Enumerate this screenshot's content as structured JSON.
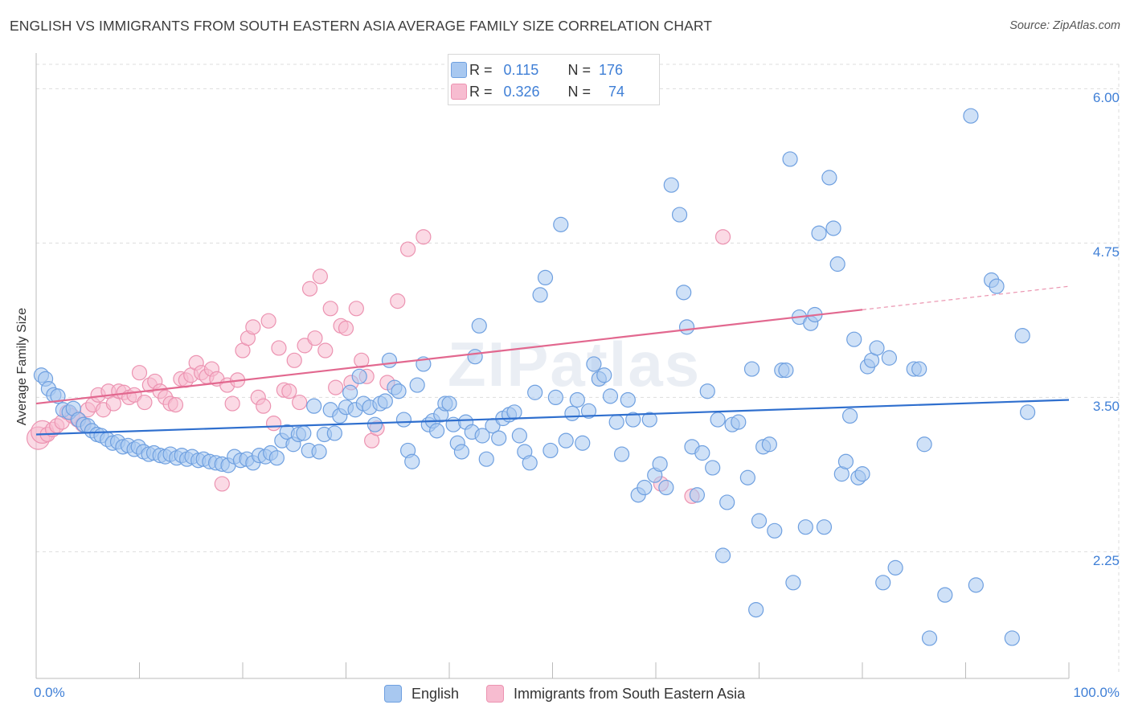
{
  "header": {
    "title": "ENGLISH VS IMMIGRANTS FROM SOUTH EASTERN ASIA AVERAGE FAMILY SIZE CORRELATION CHART",
    "source": "Source: ZipAtlas.com"
  },
  "legend_top": {
    "rows": [
      {
        "r_label": "R =",
        "r_value": "0.115",
        "n_label": "N =",
        "n_value": "176"
      },
      {
        "r_label": "R =",
        "r_value": "0.326",
        "n_label": "N =",
        "n_value": "74"
      }
    ]
  },
  "bottom_legend": [
    "English",
    "Immigrants from South Eastern Asia"
  ],
  "watermark": "ZIPatlas",
  "colors": {
    "english_fill": "#a8c8f0",
    "english_stroke": "#6fa0e0",
    "english_line": "#2f6fce",
    "immigrant_fill": "#f7bcd0",
    "immigrant_stroke": "#ec93b1",
    "immigrant_line": "#e2688f",
    "axis_text": "#3f7fd6",
    "grid": "#dddddd"
  },
  "chart_data": {
    "type": "scatter",
    "title": "ENGLISH VS IMMIGRANTS FROM SOUTH EASTERN ASIA AVERAGE FAMILY SIZE CORRELATION CHART",
    "xlabel": "",
    "ylabel": "Average Family Size",
    "xlim": [
      0,
      100
    ],
    "ylim": [
      1.25,
      6.25
    ],
    "x_tick_labels": [
      "0.0%",
      "100.0%"
    ],
    "y_ticks": [
      2.25,
      3.5,
      4.75,
      6.0
    ],
    "y_tick_labels": [
      "2.25",
      "3.50",
      "4.75",
      "6.00"
    ],
    "grid": true,
    "legend_position": "top-center and bottom",
    "series": [
      {
        "name": "English",
        "R": 0.115,
        "N": 176,
        "trend": {
          "x": [
            0,
            100
          ],
          "y": [
            3.2,
            3.48
          ]
        },
        "points": [
          [
            0.5,
            3.68
          ],
          [
            0.9,
            3.65
          ],
          [
            1.2,
            3.57
          ],
          [
            1.7,
            3.52
          ],
          [
            2.1,
            3.51
          ],
          [
            2.6,
            3.4
          ],
          [
            3.2,
            3.38
          ],
          [
            3.6,
            3.41
          ],
          [
            4.1,
            3.32
          ],
          [
            4.6,
            3.28
          ],
          [
            5.0,
            3.27
          ],
          [
            5.4,
            3.23
          ],
          [
            5.9,
            3.2
          ],
          [
            6.3,
            3.19
          ],
          [
            6.9,
            3.16
          ],
          [
            7.4,
            3.13
          ],
          [
            7.9,
            3.14
          ],
          [
            8.4,
            3.1
          ],
          [
            8.9,
            3.11
          ],
          [
            9.5,
            3.08
          ],
          [
            9.9,
            3.1
          ],
          [
            10.4,
            3.06
          ],
          [
            10.9,
            3.04
          ],
          [
            11.4,
            3.05
          ],
          [
            12.0,
            3.03
          ],
          [
            12.5,
            3.02
          ],
          [
            13.0,
            3.04
          ],
          [
            13.6,
            3.01
          ],
          [
            14.1,
            3.03
          ],
          [
            14.6,
            3.0
          ],
          [
            15.1,
            3.02
          ],
          [
            15.7,
            2.99
          ],
          [
            16.2,
            3.0
          ],
          [
            16.8,
            2.98
          ],
          [
            17.4,
            2.97
          ],
          [
            18.0,
            2.96
          ],
          [
            18.6,
            2.95
          ],
          [
            19.2,
            3.02
          ],
          [
            19.8,
            2.99
          ],
          [
            20.4,
            3.0
          ],
          [
            21.0,
            2.97
          ],
          [
            21.6,
            3.03
          ],
          [
            22.2,
            3.02
          ],
          [
            22.7,
            3.05
          ],
          [
            23.3,
            3.01
          ],
          [
            23.8,
            3.15
          ],
          [
            24.3,
            3.22
          ],
          [
            24.9,
            3.12
          ],
          [
            25.4,
            3.2
          ],
          [
            25.9,
            3.21
          ],
          [
            26.4,
            3.07
          ],
          [
            26.9,
            3.43
          ],
          [
            27.4,
            3.06
          ],
          [
            27.9,
            3.2
          ],
          [
            28.5,
            3.4
          ],
          [
            28.9,
            3.21
          ],
          [
            29.4,
            3.35
          ],
          [
            30.0,
            3.42
          ],
          [
            30.4,
            3.54
          ],
          [
            30.9,
            3.4
          ],
          [
            31.3,
            3.67
          ],
          [
            31.7,
            3.45
          ],
          [
            32.3,
            3.42
          ],
          [
            32.8,
            3.28
          ],
          [
            33.3,
            3.45
          ],
          [
            33.8,
            3.47
          ],
          [
            34.2,
            3.8
          ],
          [
            34.7,
            3.58
          ],
          [
            35.1,
            3.55
          ],
          [
            35.6,
            3.32
          ],
          [
            36.0,
            3.07
          ],
          [
            36.4,
            2.98
          ],
          [
            36.9,
            3.6
          ],
          [
            37.5,
            3.77
          ],
          [
            38.0,
            3.28
          ],
          [
            38.4,
            3.31
          ],
          [
            38.8,
            3.23
          ],
          [
            39.2,
            3.36
          ],
          [
            39.6,
            3.45
          ],
          [
            40.0,
            3.45
          ],
          [
            40.4,
            3.28
          ],
          [
            40.8,
            3.13
          ],
          [
            41.2,
            3.06
          ],
          [
            41.6,
            3.3
          ],
          [
            42.2,
            3.22
          ],
          [
            42.5,
            3.83
          ],
          [
            42.9,
            4.08
          ],
          [
            43.2,
            3.19
          ],
          [
            43.6,
            3.0
          ],
          [
            44.2,
            3.27
          ],
          [
            44.8,
            3.17
          ],
          [
            45.2,
            3.33
          ],
          [
            45.8,
            3.36
          ],
          [
            46.3,
            3.38
          ],
          [
            46.8,
            3.19
          ],
          [
            47.3,
            3.06
          ],
          [
            47.8,
            2.97
          ],
          [
            48.3,
            3.54
          ],
          [
            48.8,
            4.33
          ],
          [
            49.3,
            4.47
          ],
          [
            49.8,
            3.07
          ],
          [
            50.3,
            3.5
          ],
          [
            50.8,
            4.9
          ],
          [
            51.3,
            3.15
          ],
          [
            51.9,
            3.37
          ],
          [
            52.4,
            3.48
          ],
          [
            52.9,
            3.13
          ],
          [
            53.5,
            3.39
          ],
          [
            54.0,
            3.77
          ],
          [
            54.5,
            3.65
          ],
          [
            55.0,
            3.68
          ],
          [
            55.6,
            3.51
          ],
          [
            56.2,
            3.3
          ],
          [
            56.7,
            3.04
          ],
          [
            57.3,
            3.48
          ],
          [
            57.8,
            3.32
          ],
          [
            58.3,
            2.71
          ],
          [
            58.9,
            2.77
          ],
          [
            59.4,
            3.32
          ],
          [
            59.9,
            2.87
          ],
          [
            60.4,
            2.96
          ],
          [
            61.0,
            2.77
          ],
          [
            61.5,
            5.22
          ],
          [
            62.3,
            4.98
          ],
          [
            62.7,
            4.35
          ],
          [
            63.0,
            4.07
          ],
          [
            63.5,
            3.1
          ],
          [
            64.0,
            2.71
          ],
          [
            64.5,
            3.05
          ],
          [
            65.0,
            3.55
          ],
          [
            65.5,
            2.93
          ],
          [
            66.0,
            3.32
          ],
          [
            66.5,
            2.22
          ],
          [
            66.9,
            2.65
          ],
          [
            67.4,
            3.28
          ],
          [
            68.0,
            3.3
          ],
          [
            68.9,
            2.85
          ],
          [
            69.3,
            3.73
          ],
          [
            69.7,
            1.78
          ],
          [
            70.0,
            2.5
          ],
          [
            70.4,
            3.1
          ],
          [
            71.0,
            3.12
          ],
          [
            71.5,
            2.42
          ],
          [
            72.2,
            3.72
          ],
          [
            72.6,
            3.72
          ],
          [
            73.0,
            5.43
          ],
          [
            73.3,
            2.0
          ],
          [
            73.9,
            4.15
          ],
          [
            74.5,
            2.45
          ],
          [
            75.0,
            4.1
          ],
          [
            75.4,
            4.17
          ],
          [
            75.8,
            4.83
          ],
          [
            76.3,
            2.45
          ],
          [
            76.8,
            5.28
          ],
          [
            77.2,
            4.87
          ],
          [
            77.6,
            4.58
          ],
          [
            78.0,
            2.88
          ],
          [
            78.4,
            2.98
          ],
          [
            78.8,
            3.35
          ],
          [
            79.2,
            3.97
          ],
          [
            79.6,
            2.85
          ],
          [
            80.0,
            2.88
          ],
          [
            80.5,
            3.75
          ],
          [
            80.9,
            3.8
          ],
          [
            81.4,
            3.9
          ],
          [
            82.0,
            2.0
          ],
          [
            82.6,
            3.82
          ],
          [
            83.2,
            2.12
          ],
          [
            85.0,
            3.73
          ],
          [
            85.5,
            3.73
          ],
          [
            86.0,
            3.12
          ],
          [
            86.5,
            1.55
          ],
          [
            88.0,
            1.9
          ],
          [
            90.5,
            5.78
          ],
          [
            91.0,
            1.98
          ],
          [
            92.5,
            4.45
          ],
          [
            93.0,
            4.4
          ],
          [
            94.5,
            1.55
          ],
          [
            95.5,
            4.0
          ],
          [
            96.0,
            3.38
          ]
        ]
      },
      {
        "name": "Immigrants from South Eastern Asia",
        "R": 0.326,
        "N": 74,
        "trend": {
          "x": [
            0,
            80
          ],
          "y": [
            3.45,
            4.21
          ]
        },
        "trend_dashed": {
          "x": [
            80,
            100
          ],
          "y": [
            4.21,
            4.4
          ]
        },
        "points": [
          [
            0.2,
            3.17
          ],
          [
            0.6,
            3.22
          ],
          [
            1.1,
            3.2
          ],
          [
            1.6,
            3.24
          ],
          [
            2.0,
            3.27
          ],
          [
            2.5,
            3.3
          ],
          [
            3.0,
            3.38
          ],
          [
            3.5,
            3.35
          ],
          [
            4.0,
            3.32
          ],
          [
            4.5,
            3.28
          ],
          [
            5.0,
            3.4
          ],
          [
            5.5,
            3.44
          ],
          [
            6.0,
            3.52
          ],
          [
            6.5,
            3.4
          ],
          [
            7.0,
            3.55
          ],
          [
            7.5,
            3.45
          ],
          [
            8.0,
            3.55
          ],
          [
            8.5,
            3.54
          ],
          [
            9.0,
            3.5
          ],
          [
            9.5,
            3.52
          ],
          [
            10.0,
            3.7
          ],
          [
            10.5,
            3.46
          ],
          [
            11.0,
            3.6
          ],
          [
            11.5,
            3.63
          ],
          [
            12.0,
            3.55
          ],
          [
            12.5,
            3.5
          ],
          [
            13.0,
            3.45
          ],
          [
            13.5,
            3.44
          ],
          [
            14.0,
            3.65
          ],
          [
            14.5,
            3.64
          ],
          [
            15.0,
            3.68
          ],
          [
            15.5,
            3.78
          ],
          [
            16.0,
            3.7
          ],
          [
            16.5,
            3.67
          ],
          [
            17.0,
            3.73
          ],
          [
            17.5,
            3.65
          ],
          [
            18.0,
            2.8
          ],
          [
            18.5,
            3.6
          ],
          [
            19.0,
            3.45
          ],
          [
            19.5,
            3.64
          ],
          [
            20.0,
            3.88
          ],
          [
            20.5,
            3.98
          ],
          [
            21.0,
            4.07
          ],
          [
            21.5,
            3.5
          ],
          [
            22.0,
            3.43
          ],
          [
            22.5,
            4.12
          ],
          [
            23.0,
            3.29
          ],
          [
            23.5,
            3.9
          ],
          [
            24.0,
            3.56
          ],
          [
            24.5,
            3.55
          ],
          [
            25.0,
            3.8
          ],
          [
            25.5,
            3.46
          ],
          [
            26.0,
            3.92
          ],
          [
            26.5,
            4.38
          ],
          [
            27.0,
            3.98
          ],
          [
            27.5,
            4.48
          ],
          [
            28.0,
            3.88
          ],
          [
            28.5,
            4.22
          ],
          [
            29.0,
            3.58
          ],
          [
            29.5,
            4.08
          ],
          [
            30.0,
            4.06
          ],
          [
            30.5,
            3.62
          ],
          [
            31.0,
            4.22
          ],
          [
            31.5,
            3.8
          ],
          [
            32.0,
            3.67
          ],
          [
            32.5,
            3.15
          ],
          [
            33.0,
            3.25
          ],
          [
            34.0,
            3.62
          ],
          [
            35.0,
            4.28
          ],
          [
            36.0,
            4.7
          ],
          [
            37.5,
            4.8
          ],
          [
            60.5,
            2.8
          ],
          [
            63.5,
            2.7
          ],
          [
            66.5,
            4.8
          ]
        ]
      }
    ]
  }
}
